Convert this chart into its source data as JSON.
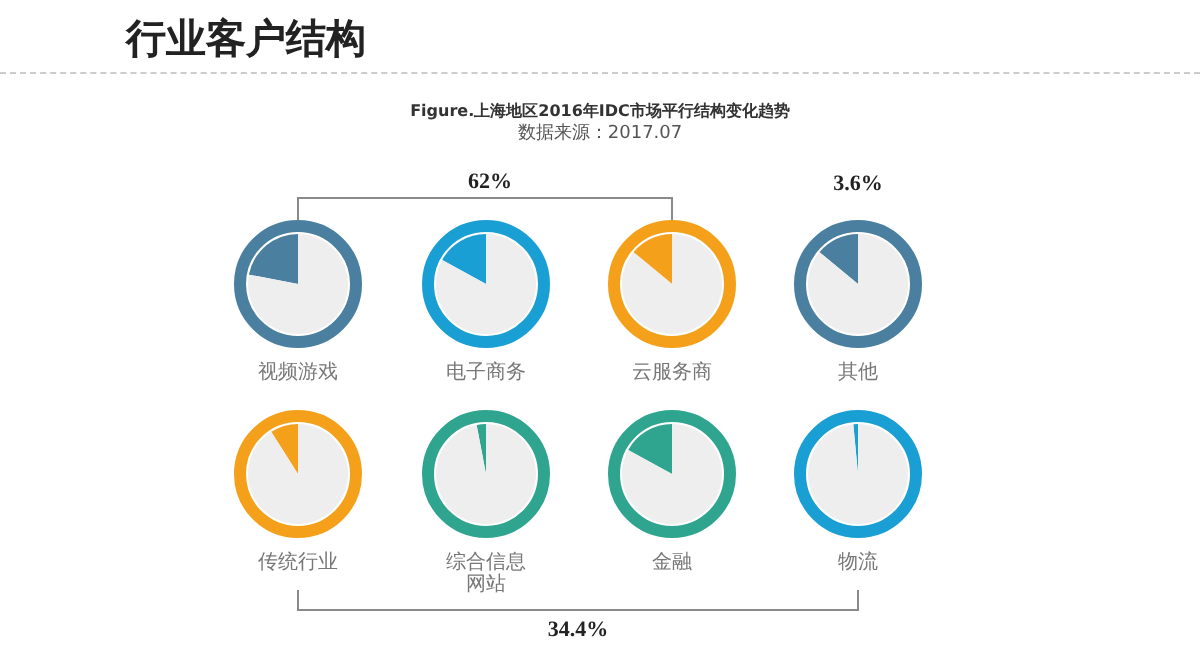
{
  "chart_data": [
    {
      "type": "other",
      "title": "行业客户结构",
      "subtitle": "Figure.上海地区2016年IDC市场平行结构变化趋势",
      "annotations": [
        "数据来源：2017.07",
        "62%",
        "3.6%",
        "34.4%"
      ]
    },
    {
      "type": "pie",
      "title": "视频游戏",
      "categories": [
        null,
        null
      ],
      "values": [
        22,
        78
      ],
      "colors": [
        "#4a7fa0",
        "#eeeeee"
      ]
    },
    {
      "type": "pie",
      "title": "电子商务",
      "categories": [
        null,
        null
      ],
      "values": [
        17,
        83
      ],
      "colors": [
        "#1a9fd4",
        "#eeeeee"
      ]
    },
    {
      "type": "pie",
      "title": "云服务商",
      "categories": [
        null,
        null
      ],
      "values": [
        14,
        86
      ],
      "colors": [
        "#f5a01a",
        "#eeeeee"
      ]
    },
    {
      "type": "pie",
      "title": "其他",
      "categories": [
        null,
        null
      ],
      "values": [
        14,
        86
      ],
      "colors": [
        "#4a7fa0",
        "#eeeeee"
      ]
    },
    {
      "type": "pie",
      "title": "传统行业",
      "categories": [
        null,
        null
      ],
      "values": [
        9,
        91
      ],
      "colors": [
        "#f5a01a",
        "#eeeeee"
      ]
    },
    {
      "type": "pie",
      "title": "综合信息网站",
      "categories": [
        null,
        null
      ],
      "values": [
        3,
        97
      ],
      "colors": [
        "#2fa58f",
        "#eeeeee"
      ]
    },
    {
      "type": "pie",
      "title": "金融",
      "categories": [
        null,
        null
      ],
      "values": [
        17,
        83
      ],
      "colors": [
        "#2fa58f",
        "#eeeeee"
      ]
    },
    {
      "type": "pie",
      "title": "物流",
      "categories": [
        null,
        null
      ],
      "values": [
        1.5,
        98.5
      ],
      "colors": [
        "#1a9fd4",
        "#eeeeee"
      ]
    }
  ]
}
